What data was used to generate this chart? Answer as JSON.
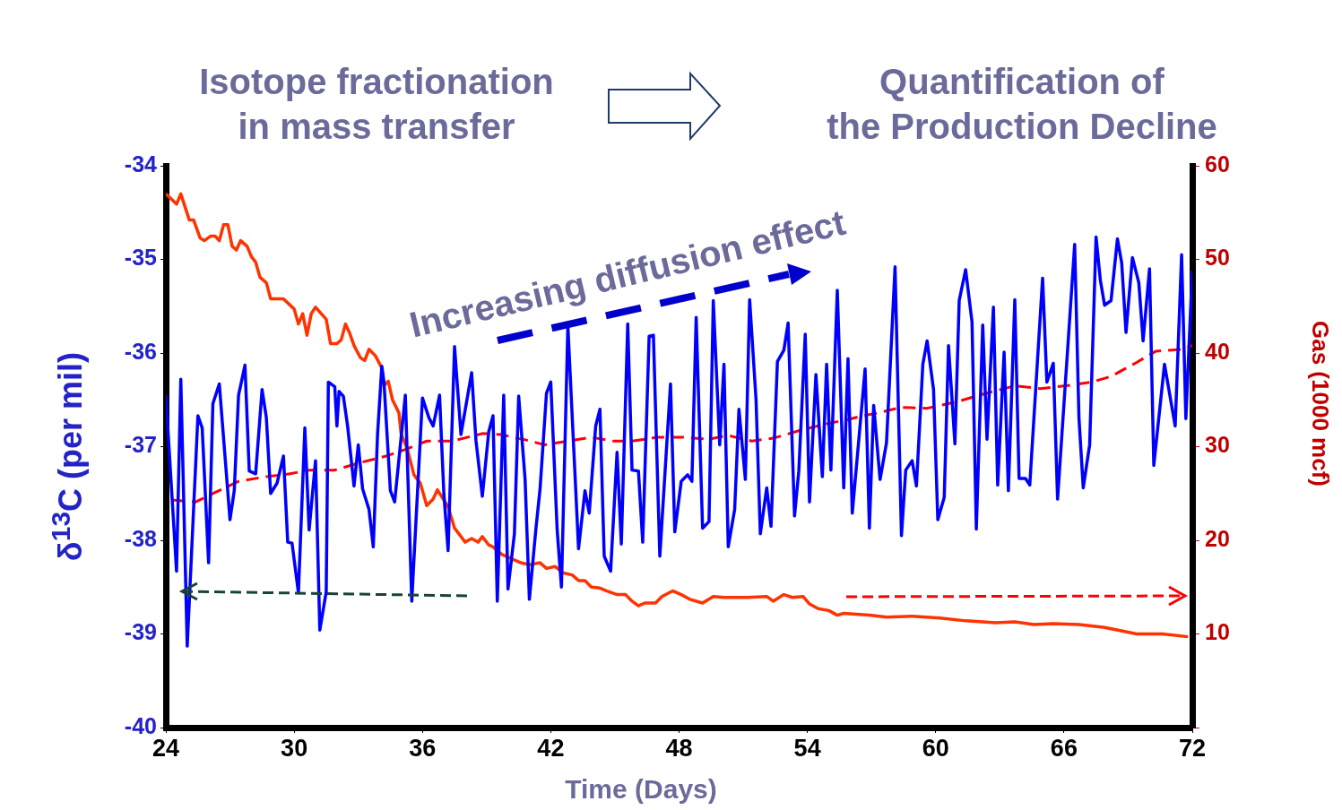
{
  "chart_data": {
    "type": "line",
    "annotations": [
      "Isotope fractionation\nin mass transfer",
      "Quantification of\nthe Production Decline",
      "Increasing diffusion effect"
    ],
    "xlabel": "Time (Days)",
    "ylabel": "δ$^{13}$C (per mil)",
    "y2label": "Gas (1000 mcf)",
    "xlim": [
      24,
      72
    ],
    "xticks": [
      24,
      30,
      36,
      42,
      48,
      54,
      60,
      66,
      72
    ],
    "ylim": [
      -40,
      -34
    ],
    "yticks": [
      -34,
      -35,
      -36,
      -37,
      -38,
      -39,
      -40
    ],
    "y2lim": [
      0,
      60
    ],
    "y2ticks": [
      {
        "value": 0,
        "label": null
      },
      10,
      20,
      30,
      40,
      50,
      60
    ],
    "grid": false,
    "marker": "none",
    "series": [
      {
        "color": "#0000ff",
        "type": "line",
        "x": [
          24.0,
          24.5,
          24.7,
          25.0,
          25.5,
          25.7,
          26.0,
          26.2,
          26.5,
          27.0,
          27.2,
          27.4,
          27.7,
          27.9,
          28.2,
          28.5,
          28.7,
          28.9,
          29.2,
          29.5,
          29.7,
          29.9,
          30.2,
          30.5,
          30.7,
          31.0,
          31.2,
          31.5,
          31.6,
          31.9,
          32.0,
          32.1,
          32.3,
          32.5,
          32.8,
          33.0,
          33.2,
          33.5,
          33.7,
          33.9,
          34.1,
          34.2,
          34.5,
          34.7,
          35.2,
          35.5,
          36.0,
          36.3,
          36.5,
          36.8,
          37.0,
          37.2,
          37.5,
          37.8,
          38.3,
          38.5,
          38.8,
          39.1,
          39.3,
          39.5,
          39.8,
          40.0,
          40.3,
          40.5,
          40.8,
          41.0,
          41.3,
          41.5,
          41.8,
          42.0,
          42.3,
          42.5,
          42.8,
          43.3,
          43.6,
          43.8,
          44.1,
          44.3,
          44.5,
          44.8,
          45.1,
          45.3,
          45.6,
          45.8,
          46.1,
          46.3,
          46.6,
          46.8,
          47.1,
          47.6,
          47.8,
          48.1,
          48.4,
          48.6,
          48.8,
          49.1,
          49.4,
          49.6,
          49.9,
          50.1,
          50.3,
          50.6,
          50.8,
          51.1,
          51.3,
          51.6,
          51.8,
          52.1,
          52.3,
          52.6,
          52.9,
          53.1,
          53.4,
          53.6,
          53.9,
          54.1,
          54.4,
          54.7,
          54.9,
          55.1,
          55.4,
          55.7,
          55.9,
          56.1,
          56.7,
          56.9,
          57.1,
          57.4,
          57.7,
          58.1,
          58.4,
          58.6,
          58.9,
          59.1,
          59.4,
          59.6,
          59.9,
          60.1,
          60.4,
          60.6,
          60.9,
          61.1,
          61.4,
          61.7,
          61.9,
          62.2,
          62.4,
          62.7,
          62.9,
          63.2,
          63.4,
          63.7,
          63.9,
          64.2,
          64.4,
          65.0,
          65.2,
          65.5,
          65.7,
          66.5,
          66.7,
          66.9,
          67.2,
          67.5,
          67.7,
          67.9,
          68.2,
          68.5,
          68.7,
          68.9,
          69.2,
          69.5,
          69.7,
          70.0,
          70.2,
          70.7,
          71.2,
          71.5,
          71.7,
          72.0
        ],
        "values": [
          -36.45,
          -38.33,
          -36.28,
          -39.13,
          -36.67,
          -36.8,
          -38.24,
          -36.54,
          -36.33,
          -37.78,
          -37.47,
          -36.45,
          -36.13,
          -37.26,
          -37.29,
          -36.39,
          -36.69,
          -37.5,
          -37.39,
          -37.1,
          -38.02,
          -38.03,
          -38.56,
          -36.8,
          -37.89,
          -37.15,
          -38.96,
          -38.55,
          -36.31,
          -36.36,
          -36.78,
          -36.41,
          -36.46,
          -36.78,
          -37.42,
          -36.98,
          -37.45,
          -37.67,
          -38.07,
          -36.87,
          -36.14,
          -36.31,
          -37.47,
          -37.59,
          -36.45,
          -38.65,
          -36.48,
          -36.69,
          -36.78,
          -36.45,
          -37.5,
          -38.11,
          -35.93,
          -36.87,
          -36.21,
          -36.93,
          -37.53,
          -36.84,
          -36.67,
          -38.65,
          -36.45,
          -38.52,
          -37.93,
          -36.46,
          -37.35,
          -38.63,
          -37.89,
          -37.45,
          -36.43,
          -36.31,
          -37.89,
          -38.5,
          -35.71,
          -38.09,
          -37.47,
          -37.71,
          -36.78,
          -36.6,
          -38.17,
          -38.33,
          -37.06,
          -38.04,
          -35.69,
          -37.25,
          -37.26,
          -38.02,
          -35.82,
          -35.81,
          -38.17,
          -36.33,
          -37.91,
          -37.37,
          -37.3,
          -37.37,
          -35.62,
          -37.87,
          -37.8,
          -35.44,
          -36.98,
          -36.12,
          -38.07,
          -37.67,
          -36.6,
          -37.35,
          -35.43,
          -36.5,
          -37.93,
          -37.44,
          -37.85,
          -36.09,
          -35.97,
          -35.68,
          -37.74,
          -37.26,
          -35.8,
          -37.59,
          -36.23,
          -37.32,
          -36.12,
          -37.25,
          -35.33,
          -37.44,
          -36.06,
          -37.71,
          -36.17,
          -37.87,
          -36.56,
          -37.35,
          -36.96,
          -35.08,
          -37.95,
          -37.25,
          -37.15,
          -37.42,
          -36.12,
          -35.87,
          -36.39,
          -37.78,
          -37.54,
          -35.92,
          -36.97,
          -35.44,
          -35.11,
          -35.67,
          -37.88,
          -35.7,
          -36.92,
          -35.51,
          -37.41,
          -35.99,
          -37.47,
          -35.43,
          -37.34,
          -37.34,
          -37.41,
          -35.2,
          -36.31,
          -36.11,
          -37.56,
          -34.84,
          -36.69,
          -37.44,
          -36.98,
          -34.76,
          -35.22,
          -35.49,
          -35.44,
          -34.78,
          -35.04,
          -35.78,
          -34.98,
          -35.25,
          -35.87,
          -35.1,
          -37.2,
          -36.12,
          -36.78,
          -34.95,
          -36.7,
          -35.12
        ]
      },
      {
        "color": "#ff3300",
        "type": "line",
        "axis": "y2",
        "x": [
          24.0,
          24.5,
          24.7,
          25.1,
          25.3,
          25.6,
          25.8,
          26.1,
          26.3,
          26.5,
          26.7,
          26.9,
          27.1,
          27.3,
          27.5,
          27.8,
          28.0,
          28.2,
          28.4,
          28.7,
          28.9,
          29.5,
          30.0,
          30.2,
          30.4,
          30.6,
          30.8,
          31.0,
          31.5,
          31.7,
          32.0,
          32.2,
          32.4,
          32.6,
          32.8,
          33.1,
          33.3,
          33.5,
          33.8,
          34.1,
          34.2,
          34.4,
          34.6,
          34.9,
          35.0,
          35.3,
          35.6,
          35.9,
          36.2,
          36.5,
          36.7,
          37.0,
          37.2,
          37.5,
          38.0,
          38.3,
          38.6,
          38.8,
          39.1,
          39.3,
          39.7,
          40.1,
          40.6,
          41.0,
          41.5,
          41.8,
          42.2,
          42.6,
          43.0,
          43.3,
          43.6,
          43.9,
          44.3,
          44.6,
          45.1,
          45.5,
          45.8,
          46.1,
          46.4,
          46.9,
          47.2,
          47.7,
          48.1,
          48.5,
          49.1,
          49.6,
          50.1,
          50.6,
          51.2,
          52.1,
          52.4,
          52.9,
          53.3,
          53.8,
          54.1,
          54.5,
          55.0,
          55.4,
          55.7,
          56.9,
          57.7,
          58.9,
          60.2,
          61.4,
          62.8,
          63.7,
          64.6,
          65.5,
          66.7,
          67.9,
          69.4,
          70.6,
          71.8
        ],
        "values": [
          57.0,
          55.9,
          57.0,
          54.2,
          54.2,
          52.3,
          52.0,
          52.5,
          52.5,
          52.0,
          53.7,
          53.7,
          51.4,
          51.0,
          52.0,
          51.4,
          50.3,
          49.7,
          48.1,
          47.5,
          45.8,
          45.8,
          44.7,
          43.1,
          44.2,
          41.9,
          44.2,
          44.9,
          43.6,
          41.0,
          41.0,
          41.4,
          43.1,
          42.1,
          40.8,
          39.5,
          39.2,
          40.4,
          39.7,
          38.4,
          36.5,
          37.0,
          35.0,
          33.6,
          31.4,
          29.7,
          27.0,
          26.1,
          23.7,
          24.4,
          25.4,
          24.3,
          23.6,
          21.3,
          19.8,
          20.2,
          19.8,
          20.4,
          19.5,
          19.3,
          18.5,
          18.1,
          17.6,
          17.4,
          17.6,
          17.0,
          17.2,
          16.5,
          16.3,
          15.7,
          15.7,
          15.0,
          14.9,
          14.6,
          14.2,
          14.2,
          13.5,
          13.0,
          13.3,
          13.3,
          14.0,
          14.6,
          14.2,
          13.7,
          13.3,
          14.0,
          13.9,
          13.9,
          13.9,
          14.0,
          13.5,
          14.2,
          13.9,
          14.0,
          13.2,
          12.7,
          12.5,
          12.0,
          12.2,
          12.0,
          11.8,
          11.9,
          11.7,
          11.4,
          11.2,
          11.3,
          11.0,
          11.1,
          11.0,
          10.7,
          10.0,
          10.0,
          9.7
        ]
      },
      {
        "color": "#ff0000",
        "type": "line",
        "axis": "y2",
        "line_style": "dashed",
        "x": [
          24.3,
          25.4,
          26.3,
          27.4,
          28.7,
          29.8,
          30.7,
          31.9,
          33.1,
          34.3,
          35.2,
          36.2,
          37.4,
          38.8,
          39.7,
          40.4,
          40.7,
          41.7,
          42.8,
          43.9,
          44.9,
          45.8,
          47.0,
          48.2,
          49.4,
          50.3,
          51.4,
          52.4,
          53.6,
          54.8,
          55.9,
          56.6,
          57.3,
          58.4,
          59.6,
          61.0,
          62.2,
          63.7,
          64.9,
          66.1,
          67.3,
          68.2,
          69.4,
          70.3,
          71.5,
          72.0
        ],
        "values": [
          24.3,
          24.1,
          25.1,
          26.3,
          26.8,
          27.1,
          27.5,
          27.5,
          28.3,
          29.0,
          29.7,
          30.6,
          30.6,
          31.4,
          31.3,
          30.9,
          30.8,
          30.2,
          30.6,
          31.0,
          30.6,
          30.6,
          31.0,
          31.0,
          30.8,
          31.2,
          30.6,
          30.9,
          31.7,
          32.4,
          32.9,
          33.3,
          33.6,
          34.2,
          34.1,
          34.8,
          35.6,
          36.5,
          36.2,
          36.5,
          36.9,
          37.5,
          39.0,
          40.2,
          40.4,
          40.8
        ]
      }
    ]
  }
}
